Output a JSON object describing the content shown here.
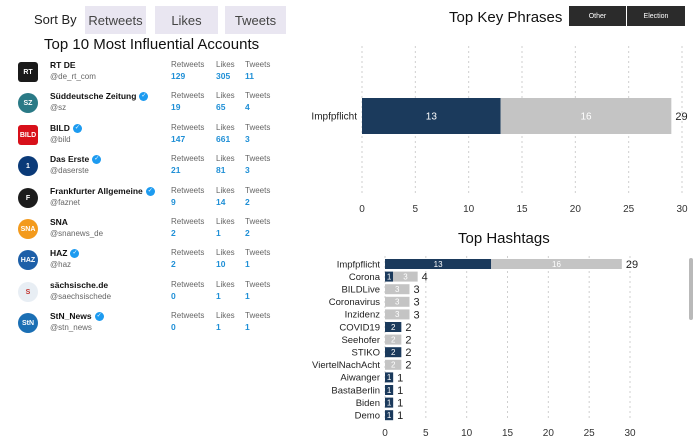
{
  "sort": {
    "label": "Sort By",
    "options": [
      "Retweets",
      "Likes",
      "Tweets"
    ]
  },
  "left_title": "Top 10 Most Influential Accounts",
  "metric_labels": {
    "retweets": "Retweets",
    "likes": "Likes",
    "tweets": "Tweets"
  },
  "accounts": [
    {
      "name": "RT DE",
      "handle": "@de_rt_com",
      "verified": false,
      "retweets": "129",
      "likes": "305",
      "tweets": "11",
      "avatar_icon": "rt-de-logo",
      "avatar_color": "#1a1a1a",
      "avatar_text": "RT"
    },
    {
      "name": "Süddeutsche Zeitung",
      "handle": "@sz",
      "verified": true,
      "retweets": "19",
      "likes": "65",
      "tweets": "4",
      "avatar_icon": "sz-logo",
      "avatar_color": "#2a7a86",
      "avatar_text": "SZ"
    },
    {
      "name": "BILD",
      "handle": "@bild",
      "verified": true,
      "retweets": "147",
      "likes": "661",
      "tweets": "3",
      "avatar_icon": "bild-logo",
      "avatar_color": "#d8101a",
      "avatar_text": "BILD"
    },
    {
      "name": "Das Erste",
      "handle": "@daserste",
      "verified": true,
      "retweets": "21",
      "likes": "81",
      "tweets": "3",
      "avatar_icon": "das-erste-logo",
      "avatar_color": "#0a3a78",
      "avatar_text": "1"
    },
    {
      "name": "Frankfurter Allgemeine",
      "handle": "@faznet",
      "verified": true,
      "retweets": "9",
      "likes": "14",
      "tweets": "2",
      "avatar_icon": "faz-logo",
      "avatar_color": "#1c1c1c",
      "avatar_text": "F"
    },
    {
      "name": "SNA",
      "handle": "@snanews_de",
      "verified": false,
      "retweets": "2",
      "likes": "1",
      "tweets": "2",
      "avatar_icon": "sna-logo",
      "avatar_color": "#f39a1c",
      "avatar_text": "SNA"
    },
    {
      "name": "HAZ",
      "handle": "@haz",
      "verified": true,
      "retweets": "2",
      "likes": "10",
      "tweets": "1",
      "avatar_icon": "haz-logo",
      "avatar_color": "#1d5fa8",
      "avatar_text": "HAZ"
    },
    {
      "name": "sächsische.de",
      "handle": "@saechsischede",
      "verified": false,
      "retweets": "0",
      "likes": "1",
      "tweets": "1",
      "avatar_icon": "saechsische-logo",
      "avatar_color": "#e8eef4",
      "avatar_text": "S"
    },
    {
      "name": "StN_News",
      "handle": "@stn_news",
      "verified": true,
      "retweets": "0",
      "likes": "1",
      "tweets": "1",
      "avatar_icon": "stn-logo",
      "avatar_color": "#1b6fb4",
      "avatar_text": "StN"
    }
  ],
  "phrases_title": "Top Key Phrases",
  "segments": [
    "Other",
    "Election"
  ],
  "hashtags_title": "Top Hashtags",
  "colors": {
    "election": "#1b3a5c",
    "other": "#c4c4c4"
  },
  "chart_data": [
    {
      "type": "bar",
      "orientation": "horizontal",
      "stacked": true,
      "title": "Top Key Phrases",
      "categories": [
        "Impfpflicht"
      ],
      "series": [
        {
          "name": "Election",
          "values": [
            13
          ]
        },
        {
          "name": "Other",
          "values": [
            16
          ]
        }
      ],
      "totals": [
        29
      ],
      "xlim": [
        0,
        30
      ],
      "xticks": [
        0,
        5,
        10,
        15,
        20,
        25,
        30
      ],
      "grid": true
    },
    {
      "type": "bar",
      "orientation": "horizontal",
      "stacked": true,
      "title": "Top Hashtags",
      "categories": [
        "Impfpflicht",
        "Corona",
        "BILDLive",
        "Coronavirus",
        "Inzidenz",
        "COVID19",
        "Seehofer",
        "STIKO",
        "ViertelNachAcht",
        "Aiwanger",
        "BastaBerlin",
        "Biden",
        "Demo"
      ],
      "series": [
        {
          "name": "Election",
          "values": [
            13,
            1,
            0,
            0,
            0,
            2,
            0,
            2,
            0,
            1,
            1,
            1,
            1
          ]
        },
        {
          "name": "Other",
          "values": [
            16,
            3,
            3,
            3,
            3,
            0,
            2,
            0,
            2,
            0,
            0,
            0,
            0
          ]
        }
      ],
      "totals": [
        29,
        4,
        3,
        3,
        3,
        2,
        2,
        2,
        2,
        1,
        1,
        1,
        1
      ],
      "xlim": [
        0,
        30
      ],
      "xticks": [
        0,
        5,
        10,
        15,
        20,
        25,
        30
      ],
      "grid": true
    }
  ]
}
